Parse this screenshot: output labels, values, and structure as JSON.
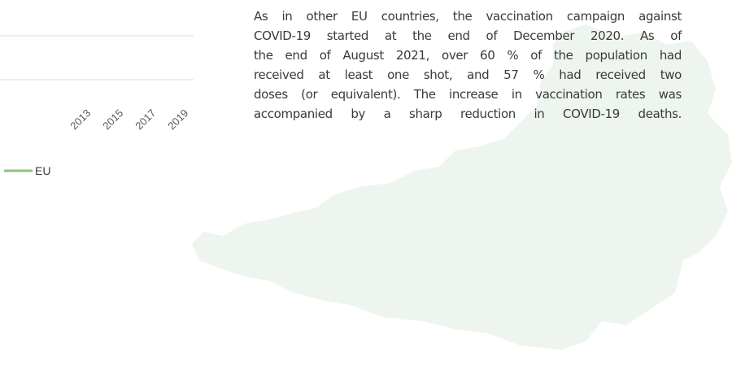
{
  "chart_fragment": {
    "xticks": [
      "2013",
      "2015",
      "2017",
      "2019"
    ],
    "legend": [
      {
        "name": "EU",
        "color": "#8fc07f"
      }
    ]
  },
  "paragraph": {
    "lines": [
      "As in other EU countries, the vaccination campaign against",
      "COVID-19 started at the end of December 2020. As of",
      "the end of August 2021, over 60 % of the population had",
      "received at least one shot, and 57 % had received two",
      "doses (or equivalent). The increase in vaccination rates was",
      "accompanied by a sharp reduction in COVID-19 deaths."
    ]
  }
}
